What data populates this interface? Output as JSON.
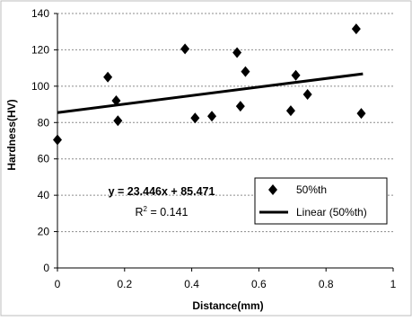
{
  "chart_data": {
    "type": "scatter",
    "title": "",
    "xlabel": "Distance(mm)",
    "ylabel": "Hardness(HV)",
    "xlim": [
      0,
      1
    ],
    "ylim": [
      0,
      140
    ],
    "x_ticks": [
      "0",
      "0.2",
      "0.4",
      "0.6",
      "0.8",
      "1"
    ],
    "y_ticks": [
      "0",
      "20",
      "40",
      "60",
      "80",
      "100",
      "120",
      "140"
    ],
    "grid": "horizontal dashed",
    "legend_position": "lower-right",
    "series": [
      {
        "name": "50%th",
        "marker": "diamond",
        "color": "#000000",
        "points": [
          {
            "x": 0.0,
            "y": 70.5
          },
          {
            "x": 0.15,
            "y": 105
          },
          {
            "x": 0.175,
            "y": 92
          },
          {
            "x": 0.18,
            "y": 81
          },
          {
            "x": 0.38,
            "y": 120.5
          },
          {
            "x": 0.41,
            "y": 82.5
          },
          {
            "x": 0.46,
            "y": 83.5
          },
          {
            "x": 0.535,
            "y": 118.5
          },
          {
            "x": 0.545,
            "y": 89
          },
          {
            "x": 0.56,
            "y": 108
          },
          {
            "x": 0.695,
            "y": 86.5
          },
          {
            "x": 0.71,
            "y": 106
          },
          {
            "x": 0.745,
            "y": 95.5
          },
          {
            "x": 0.89,
            "y": 131.5
          },
          {
            "x": 0.905,
            "y": 85
          }
        ]
      }
    ],
    "trendline": {
      "name": "Linear (50%th)",
      "slope": 23.446,
      "intercept": 85.471,
      "x_range": [
        0,
        0.91
      ],
      "equation_label": "y = 23.446x + 85.471",
      "r2_prefix": "R",
      "r2_sup": "2",
      "r2_value": " = 0.141"
    }
  }
}
